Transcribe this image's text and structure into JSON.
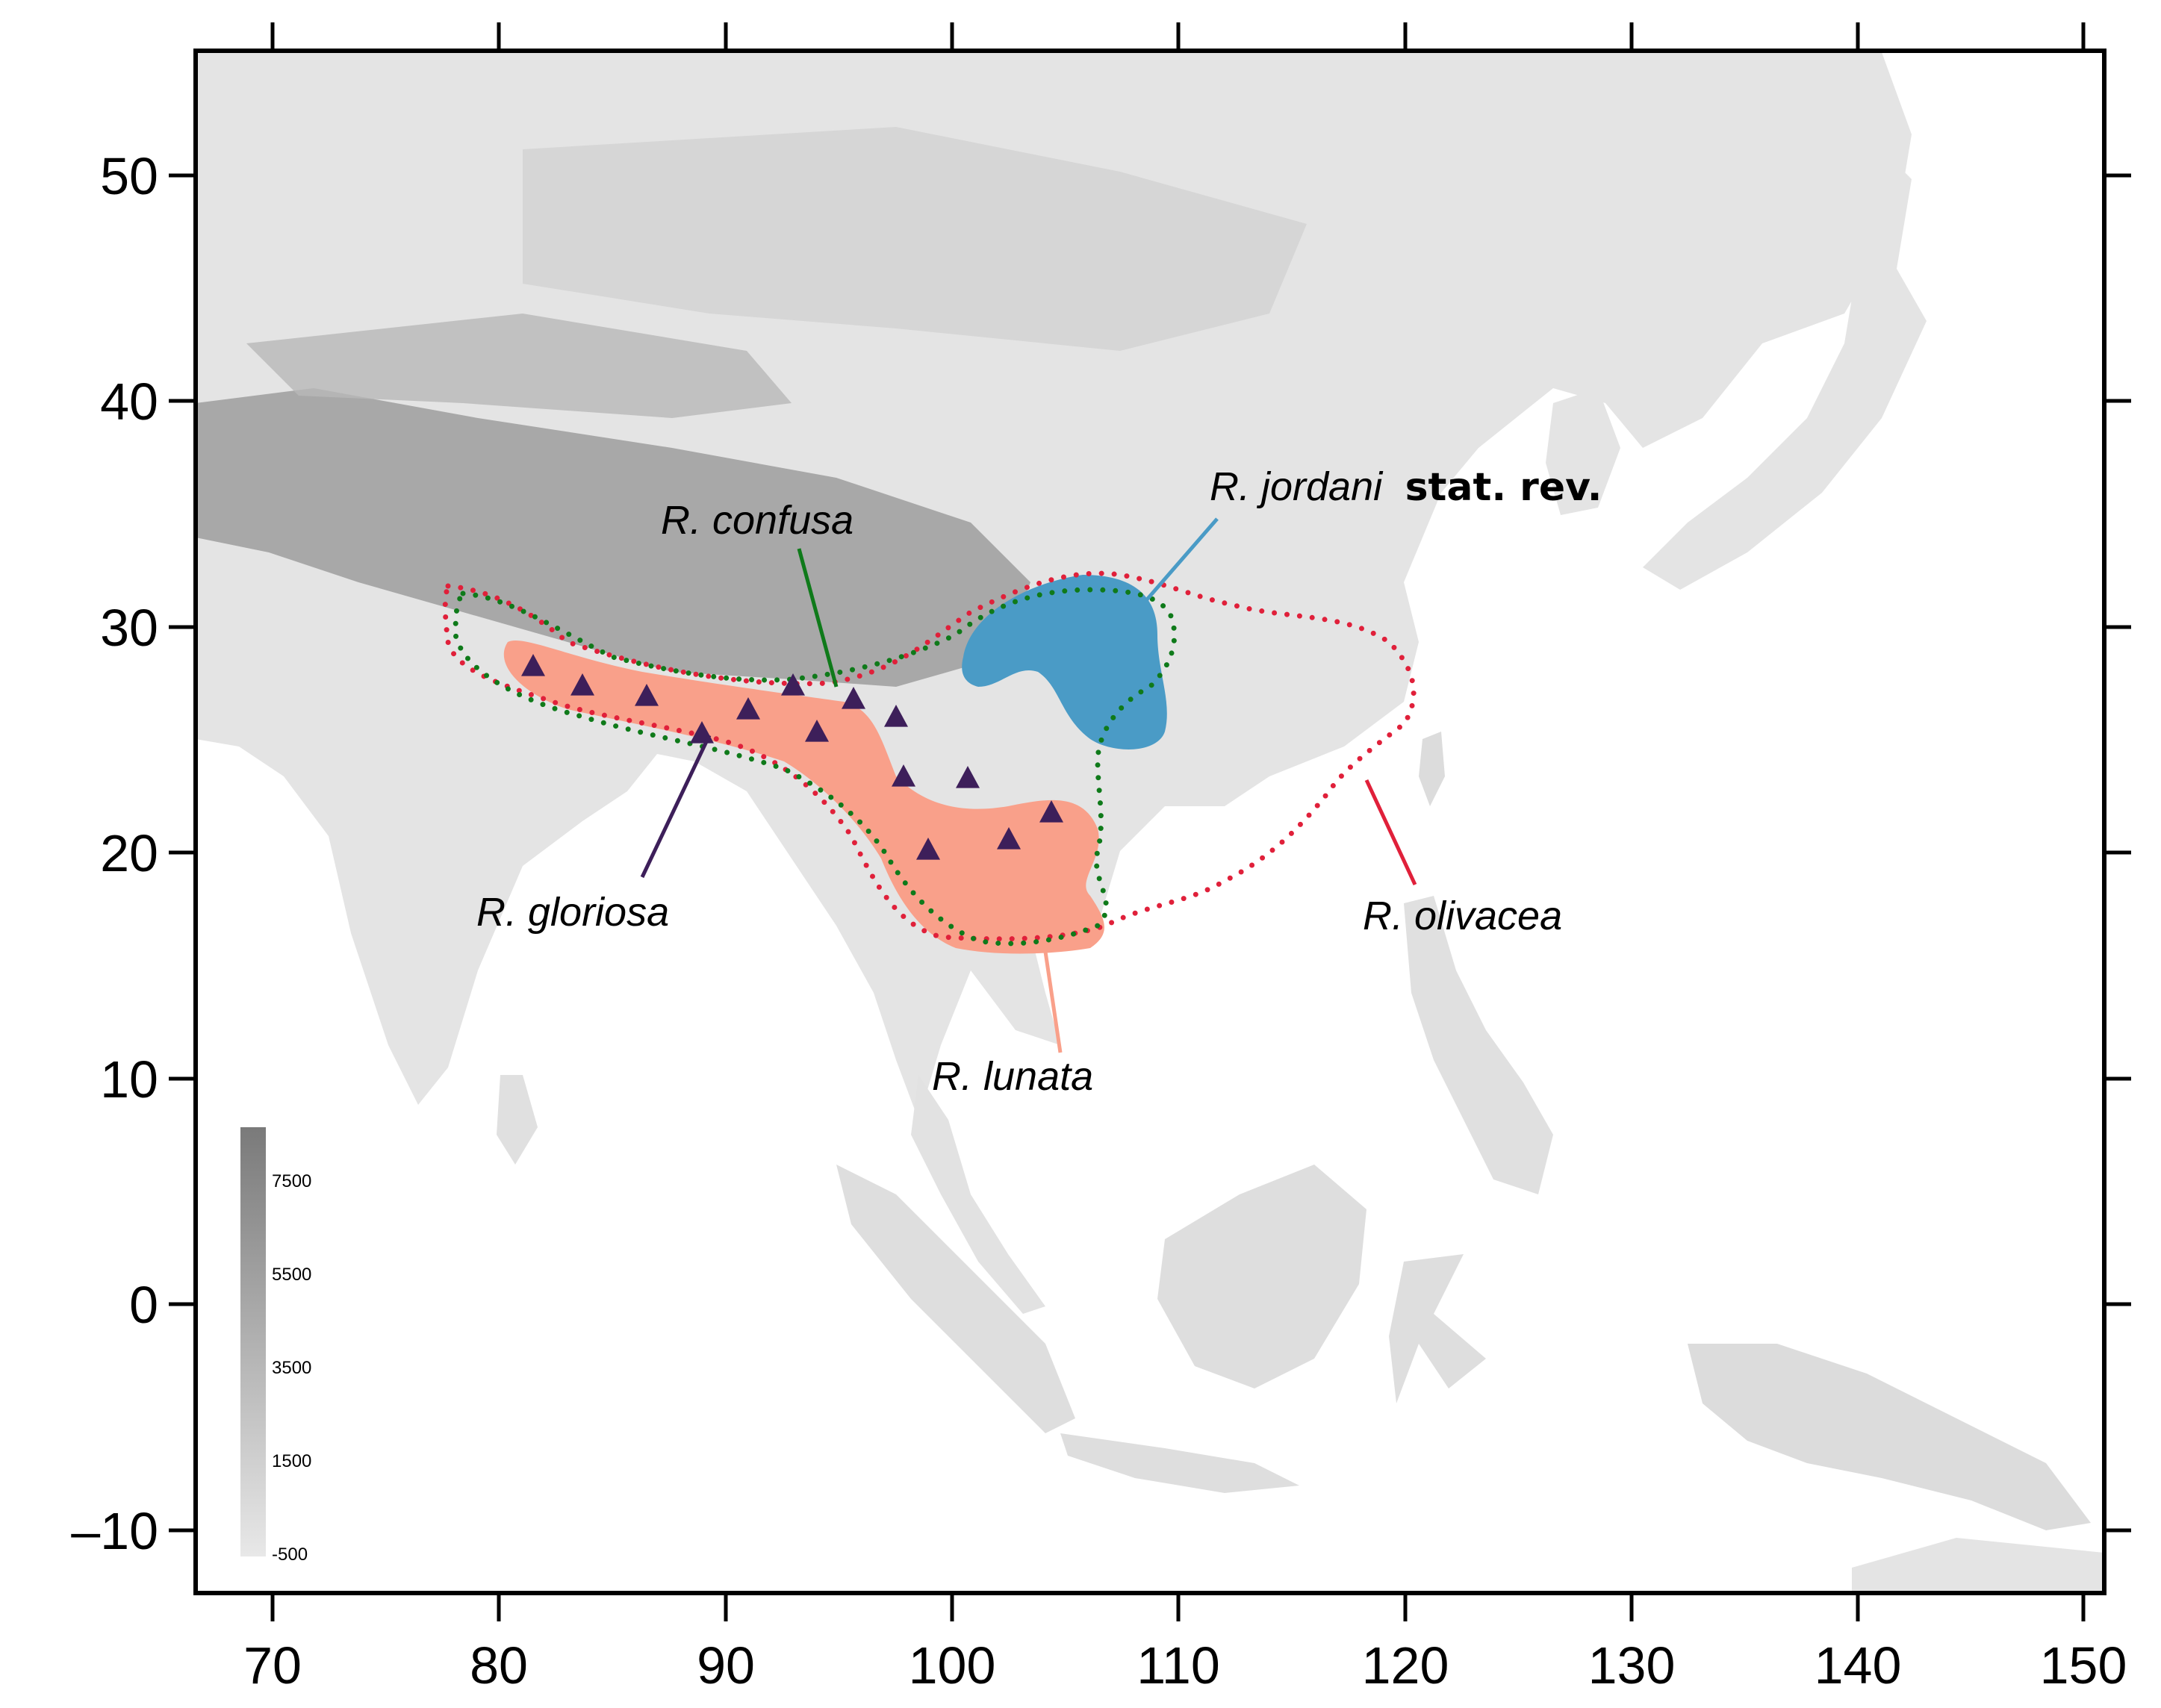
{
  "axes": {
    "x_ticks": [
      "70",
      "80",
      "90",
      "100",
      "110",
      "120",
      "130",
      "140",
      "150"
    ],
    "y_ticks": [
      "50",
      "40",
      "30",
      "20",
      "10",
      "0",
      "–10"
    ]
  },
  "species": [
    {
      "id": "confusa",
      "label": "R. confusa",
      "color": "#0f7a1a",
      "style": "dotted outline"
    },
    {
      "id": "jordani",
      "label": "R. jordani",
      "suffix": "stat. rev.",
      "color": "#4a9bc6",
      "style": "filled"
    },
    {
      "id": "gloriosa",
      "label": "R. gloriosa",
      "color": "#3d1f5a",
      "style": "triangle points"
    },
    {
      "id": "olivacea",
      "label": "R. olivacea",
      "color": "#e0203a",
      "style": "dotted outline"
    },
    {
      "id": "lunata",
      "label": "R. lunata",
      "color": "#f9a08a",
      "style": "filled"
    }
  ],
  "legend": {
    "ticks": [
      "7500",
      "5500",
      "3500",
      "1500",
      "-500"
    ]
  },
  "map": {
    "land_color": "#e6e6e6",
    "highland_color": "#9a9a9a",
    "ocean_color": "#ffffff"
  }
}
